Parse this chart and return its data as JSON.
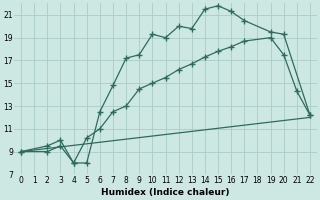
{
  "line1_x": [
    0,
    2,
    3,
    4,
    5,
    6,
    7,
    8,
    9,
    10,
    11,
    12,
    13,
    14,
    15,
    16,
    17,
    19,
    20,
    22
  ],
  "line1_y": [
    9,
    9,
    9.5,
    8.0,
    8.0,
    12.5,
    14.8,
    17.2,
    17.5,
    19.3,
    19.0,
    20.0,
    19.8,
    21.5,
    21.8,
    21.3,
    20.5,
    19.5,
    19.3,
    12.2
  ],
  "line2_x": [
    0,
    2,
    3,
    4,
    5,
    6,
    7,
    8,
    9,
    10,
    11,
    12,
    13,
    14,
    15,
    16,
    17,
    19,
    20,
    21,
    22
  ],
  "line2_y": [
    9,
    9.5,
    10.0,
    8.0,
    10.2,
    11.0,
    12.5,
    13.0,
    14.5,
    15.0,
    15.5,
    16.2,
    16.7,
    17.3,
    17.8,
    18.2,
    18.7,
    19.0,
    17.5,
    14.3,
    12.2
  ],
  "line3_x": [
    0,
    22
  ],
  "line3_y": [
    9,
    12
  ],
  "line_color": "#2e6b5e",
  "bg_color": "#cde8e2",
  "grid_color": "#aaccc6",
  "xlabel": "Humidex (Indice chaleur)",
  "xlim": [
    -0.5,
    22.5
  ],
  "ylim": [
    7,
    22
  ],
  "yticks": [
    7,
    9,
    11,
    13,
    15,
    17,
    19,
    21
  ],
  "xticks": [
    0,
    1,
    2,
    3,
    4,
    5,
    6,
    7,
    8,
    9,
    10,
    11,
    12,
    13,
    14,
    15,
    16,
    17,
    18,
    19,
    20,
    21,
    22
  ],
  "marker": "+"
}
